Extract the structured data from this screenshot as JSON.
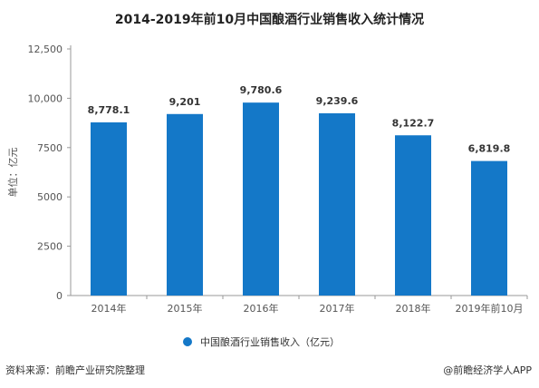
{
  "title": "2014-2019年前10月中国酿酒行业销售收入统计情况",
  "unit_label": "单位：亿元",
  "legend_label": "中国酿酒行业销售收入（亿元）",
  "source": "资料来源：前瞻产业研究院整理",
  "brand": "@前瞻经济学人APP",
  "colors": {
    "bar": "#1478C8",
    "axis": "#999999"
  },
  "chart_data": {
    "type": "bar",
    "categories": [
      "2014年",
      "2015年",
      "2016年",
      "2017年",
      "2018年",
      "2019年前10月"
    ],
    "values": [
      8778.1,
      9201,
      9780.6,
      9239.6,
      8122.7,
      6819.8
    ],
    "value_labels": [
      "8,778.1",
      "9,201",
      "9,780.6",
      "9,239.6",
      "8,122.7",
      "6,819.8"
    ],
    "y_ticks": [
      0,
      2500,
      5000,
      7500,
      10000,
      12500
    ],
    "y_tick_labels": [
      "0",
      "2500",
      "5000",
      "7500",
      "10,000",
      "12,500"
    ],
    "ylim": [
      0,
      12500
    ],
    "grid": false,
    "legend_position": "bottom",
    "series": [
      {
        "name": "中国酿酒行业销售收入（亿元）",
        "values": [
          8778.1,
          9201,
          9780.6,
          9239.6,
          8122.7,
          6819.8
        ]
      }
    ]
  }
}
